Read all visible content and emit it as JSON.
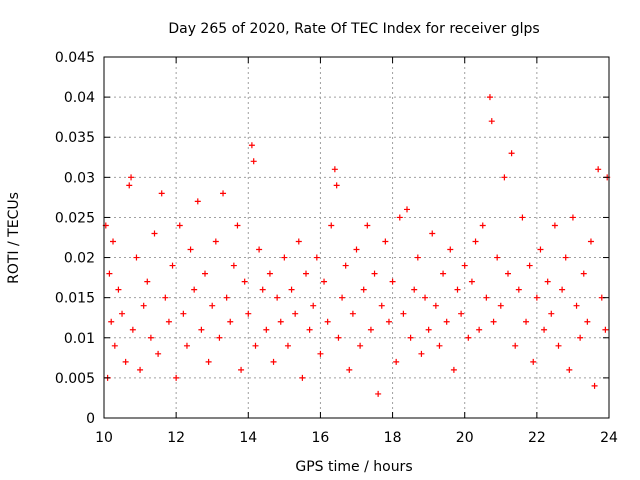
{
  "chart_data": {
    "type": "scatter",
    "title": "Day 265 of 2020, Rate Of TEC Index for receiver glps",
    "xlabel": "GPS time / hours",
    "ylabel": "ROTI / TECUs",
    "xlim": [
      10,
      24
    ],
    "ylim": [
      0,
      0.045
    ],
    "x_ticks": [
      10,
      12,
      14,
      16,
      18,
      20,
      22,
      24
    ],
    "x_tick_labels": [
      "10",
      "12",
      "14",
      "16",
      "18",
      "20",
      "22",
      "24"
    ],
    "y_ticks": [
      0,
      0.005,
      0.01,
      0.015,
      0.02,
      0.025,
      0.03,
      0.035,
      0.04,
      0.045
    ],
    "y_tick_labels": [
      "0",
      "0.005",
      "0.01",
      "0.015",
      "0.02",
      "0.025",
      "0.03",
      "0.035",
      "0.04",
      "0.045"
    ],
    "grid": true,
    "marker": "+",
    "colors": {
      "series": "#ff0000",
      "grid": "#a0a0a0",
      "axis": "#000000"
    },
    "series": [
      {
        "x": [
          10.05,
          10.1,
          10.15,
          10.2,
          10.25,
          10.3,
          10.4,
          10.5,
          10.6,
          10.7,
          10.75,
          10.8,
          10.9,
          11.0,
          11.1,
          11.2,
          11.3,
          11.4,
          11.5,
          11.6,
          11.7,
          11.8,
          11.9,
          12.0,
          12.1,
          12.2,
          12.3,
          12.4,
          12.5,
          12.6,
          12.7,
          12.8,
          12.9,
          13.0,
          13.1,
          13.2,
          13.3,
          13.4,
          13.5,
          13.6,
          13.7,
          13.8,
          13.9,
          14.0,
          14.1,
          14.15,
          14.2,
          14.3,
          14.4,
          14.5,
          14.6,
          14.7,
          14.8,
          14.9,
          15.0,
          15.1,
          15.2,
          15.3,
          15.4,
          15.5,
          15.6,
          15.7,
          15.8,
          15.9,
          16.0,
          16.1,
          16.2,
          16.3,
          16.4,
          16.45,
          16.5,
          16.6,
          16.7,
          16.8,
          16.9,
          17.0,
          17.1,
          17.2,
          17.3,
          17.4,
          17.5,
          17.6,
          17.7,
          17.8,
          17.9,
          18.0,
          18.1,
          18.2,
          18.3,
          18.4,
          18.5,
          18.6,
          18.7,
          18.8,
          18.9,
          19.0,
          19.1,
          19.2,
          19.3,
          19.4,
          19.5,
          19.6,
          19.7,
          19.8,
          19.9,
          20.0,
          20.1,
          20.2,
          20.3,
          20.4,
          20.5,
          20.6,
          20.7,
          20.75,
          20.8,
          20.9,
          21.0,
          21.1,
          21.2,
          21.3,
          21.4,
          21.5,
          21.6,
          21.7,
          21.8,
          21.9,
          22.0,
          22.1,
          22.2,
          22.3,
          22.4,
          22.5,
          22.6,
          22.7,
          22.8,
          22.9,
          23.0,
          23.1,
          23.2,
          23.3,
          23.4,
          23.5,
          23.6,
          23.7,
          23.8,
          23.9,
          23.95
        ],
        "y": [
          0.024,
          0.005,
          0.018,
          0.012,
          0.022,
          0.009,
          0.016,
          0.013,
          0.007,
          0.029,
          0.03,
          0.011,
          0.02,
          0.006,
          0.014,
          0.017,
          0.01,
          0.023,
          0.008,
          0.028,
          0.015,
          0.012,
          0.019,
          0.005,
          0.024,
          0.013,
          0.009,
          0.021,
          0.016,
          0.027,
          0.011,
          0.018,
          0.007,
          0.014,
          0.022,
          0.01,
          0.028,
          0.015,
          0.012,
          0.019,
          0.024,
          0.006,
          0.017,
          0.013,
          0.034,
          0.032,
          0.009,
          0.021,
          0.016,
          0.011,
          0.018,
          0.007,
          0.015,
          0.012,
          0.02,
          0.009,
          0.016,
          0.013,
          0.022,
          0.005,
          0.018,
          0.011,
          0.014,
          0.02,
          0.008,
          0.017,
          0.012,
          0.024,
          0.031,
          0.029,
          0.01,
          0.015,
          0.019,
          0.006,
          0.013,
          0.021,
          0.009,
          0.016,
          0.024,
          0.011,
          0.018,
          0.003,
          0.014,
          0.022,
          0.012,
          0.017,
          0.007,
          0.025,
          0.013,
          0.026,
          0.01,
          0.016,
          0.02,
          0.008,
          0.015,
          0.011,
          0.023,
          0.014,
          0.009,
          0.018,
          0.012,
          0.021,
          0.006,
          0.016,
          0.013,
          0.019,
          0.01,
          0.017,
          0.022,
          0.011,
          0.024,
          0.015,
          0.04,
          0.037,
          0.012,
          0.02,
          0.014,
          0.03,
          0.018,
          0.033,
          0.009,
          0.016,
          0.025,
          0.012,
          0.019,
          0.007,
          0.015,
          0.021,
          0.011,
          0.017,
          0.013,
          0.024,
          0.009,
          0.016,
          0.02,
          0.006,
          0.025,
          0.014,
          0.01,
          0.018,
          0.012,
          0.022,
          0.004,
          0.031,
          0.015,
          0.011,
          0.03
        ]
      }
    ]
  }
}
